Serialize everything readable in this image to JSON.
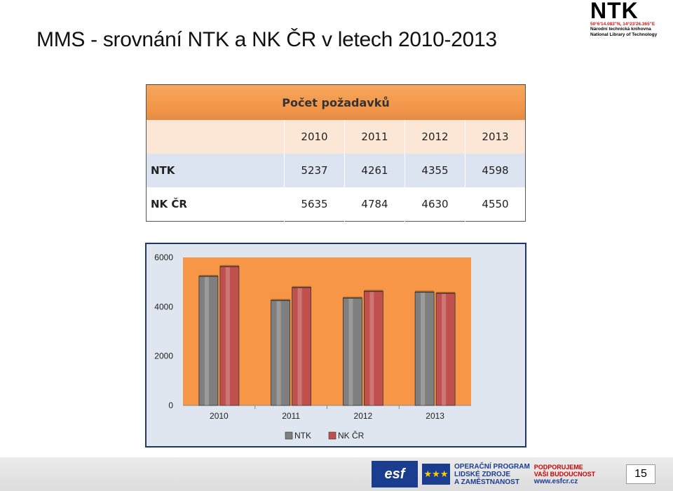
{
  "slide": {
    "title": "MMS - srovnání NTK a NK ČR v letech 2010-2013",
    "page_number": "15"
  },
  "logo": {
    "mark": "NTK",
    "coords": "50°6'14.083\"N, 14°23'26.365\"E",
    "line1": "Národní technická knihovna",
    "line2": "National Library of Technology"
  },
  "footer": {
    "esf": "esf",
    "op_line1": "OPERAČNÍ PROGRAM",
    "op_line2": "LIDSKÉ ZDROJE",
    "op_line3": "A ZAMĚSTNANOST",
    "sup_line1": "PODPORUJEME",
    "sup_line2": "VAŠI BUDOUCNOST",
    "sup_line3": "www.esfcr.cz"
  },
  "table": {
    "header": "Počet požadavků",
    "years": [
      "2010",
      "2011",
      "2012",
      "2013"
    ],
    "rows": [
      {
        "label": "NTK",
        "values": [
          "5237",
          "4261",
          "4355",
          "4598"
        ]
      },
      {
        "label": "NK ČR",
        "values": [
          "5635",
          "4784",
          "4630",
          "4550"
        ]
      }
    ]
  },
  "chart_data": {
    "type": "bar",
    "categories": [
      "2010",
      "2011",
      "2012",
      "2013"
    ],
    "series": [
      {
        "name": "NTK",
        "values": [
          5237,
          4261,
          4355,
          4598
        ],
        "color": "#7f7f7f"
      },
      {
        "name": "NK ČR",
        "values": [
          5635,
          4784,
          4630,
          4550
        ],
        "color": "#c0504d"
      }
    ],
    "ylim": [
      0,
      6000
    ],
    "yticks": [
      "0",
      "2000",
      "4000",
      "6000"
    ],
    "plot_background": "#f79646",
    "legend": "bottom",
    "grid": false
  }
}
